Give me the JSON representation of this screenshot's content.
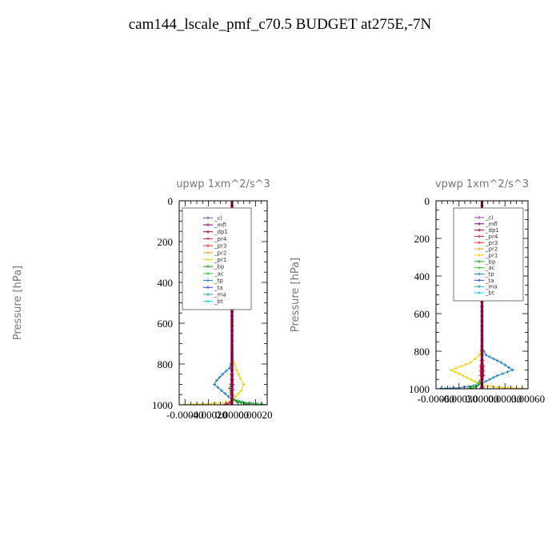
{
  "main_title": "cam144_lscale_pmf_c70.5  BUDGET at275E,-7N",
  "legend_entries": [
    "_cl",
    "_mfl",
    "_dp1",
    "_pr4",
    "_pr3",
    "_pr2",
    "_pr1",
    "_bp",
    "_ac",
    "_tp",
    "_ta",
    "_ma",
    "_bt"
  ],
  "series_colors": {
    "_cl": "#8050a0",
    "_mfl": "#800070",
    "_dp1": "#a00030",
    "_pr4": "#cc2050",
    "_pr3": "#ee3030",
    "_pr2": "#ff9a30",
    "_pr1": "#f0d000",
    "_bp": "#20a020",
    "_ac": "#30c030",
    "_tp": "#2080c0",
    "_ta": "#3050e0",
    "_ma": "#20a0b0",
    "_bt": "#00d0f0"
  },
  "chart_data": [
    {
      "type": "line",
      "title": "upwp   1xm^2/s^3",
      "ylabel": "Pressure [hPa]",
      "xlabel": "",
      "xlim": [
        -0.00045,
        0.0003
      ],
      "ylim": [
        1000,
        0
      ],
      "y_inverted": true,
      "xticks": [
        -0.0004,
        -0.0002,
        0,
        0.0002
      ],
      "xtick_labels": [
        "-0.00040",
        "-0.00020",
        "0.00000",
        "0.00020"
      ],
      "yticks": [
        0,
        200,
        400,
        600,
        800,
        1000
      ],
      "ytick_labels": [
        "0",
        "200",
        "400",
        "600",
        "800",
        "1000"
      ],
      "legend": "top-right",
      "series": [
        {
          "name": "_pr1",
          "points": [
            [
              0,
              0
            ],
            [
              0,
              100
            ],
            [
              1.5e-05,
              140
            ],
            [
              4e-05,
              180
            ],
            [
              6e-05,
              210
            ],
            [
              3e-05,
              250
            ],
            [
              1e-05,
              290
            ],
            [
              0,
              330
            ],
            [
              0,
              500
            ],
            [
              0,
              760
            ],
            [
              2e-05,
              800
            ],
            [
              4e-05,
              830
            ],
            [
              7e-05,
              870
            ],
            [
              0.0001,
              900
            ],
            [
              8e-05,
              930
            ],
            [
              3e-05,
              960
            ],
            [
              0,
              980
            ],
            [
              -0.0001,
              992
            ],
            [
              -0.00025,
              996
            ],
            [
              -0.00045,
              1000
            ]
          ]
        },
        {
          "name": "_tp",
          "points": [
            [
              0,
              0
            ],
            [
              0,
              130
            ],
            [
              -3e-05,
              170
            ],
            [
              -6e-05,
              200
            ],
            [
              -3e-05,
              230
            ],
            [
              -1e-05,
              270
            ],
            [
              0,
              330
            ],
            [
              0,
              780
            ],
            [
              -2e-05,
              820
            ],
            [
              -8e-05,
              850
            ],
            [
              -0.00013,
              880
            ],
            [
              -0.00015,
              900
            ],
            [
              -9e-05,
              930
            ],
            [
              -3e-05,
              960
            ],
            [
              0,
              975
            ],
            [
              0.0001,
              990
            ],
            [
              0.0003,
              1000
            ]
          ]
        },
        {
          "name": "_ac",
          "points": [
            [
              0,
              0
            ],
            [
              0,
              900
            ],
            [
              -1e-05,
              940
            ],
            [
              0,
              960
            ],
            [
              2e-05,
              975
            ],
            [
              0.00012,
              990
            ],
            [
              0.0003,
              1000
            ]
          ]
        },
        {
          "name": "_bp",
          "points": [
            [
              0,
              0
            ],
            [
              0,
              880
            ],
            [
              -2e-05,
              920
            ],
            [
              -1e-05,
              950
            ],
            [
              0,
              970
            ],
            [
              4e-05,
              985
            ],
            [
              0.00015,
              1000
            ]
          ]
        },
        {
          "name": "_pr3",
          "points": [
            [
              0,
              0
            ],
            [
              0,
              800
            ],
            [
              6e-06,
              850
            ],
            [
              1e-05,
              900
            ],
            [
              5e-06,
              950
            ],
            [
              -1e-05,
              990
            ],
            [
              -5e-05,
              1000
            ]
          ]
        },
        {
          "name": "_pr4",
          "points": [
            [
              0,
              0
            ],
            [
              0,
              800
            ],
            [
              -6e-06,
              850
            ],
            [
              -5e-06,
              920
            ],
            [
              5e-06,
              960
            ],
            [
              -2e-05,
              990
            ],
            [
              -8e-05,
              1000
            ]
          ]
        },
        {
          "name": "_pr2",
          "points": [
            [
              0,
              0
            ],
            [
              0,
              1000
            ]
          ]
        },
        {
          "name": "_ta",
          "points": [
            [
              0,
              0
            ],
            [
              0,
              1000
            ]
          ]
        },
        {
          "name": "_ma",
          "points": [
            [
              0,
              0
            ],
            [
              0,
              1000
            ]
          ]
        },
        {
          "name": "_mfl",
          "points": [
            [
              0,
              0
            ],
            [
              0,
              1000
            ]
          ]
        },
        {
          "name": "_dp1",
          "points": [
            [
              0,
              0
            ],
            [
              0,
              1000
            ]
          ]
        },
        {
          "name": "_cl",
          "points": [
            [
              0,
              0
            ],
            [
              0,
              1000
            ]
          ]
        }
      ]
    },
    {
      "type": "line",
      "title": "vpwp   1xm^2/s^3",
      "ylabel": "Pressure [hPa]",
      "xlabel": "",
      "xlim": [
        -0.0006,
        0.0006
      ],
      "ylim": [
        1000,
        0
      ],
      "y_inverted": true,
      "xticks": [
        -0.0006,
        -0.0003,
        0,
        0.0003,
        0.0006
      ],
      "xtick_labels": [
        "-0.00060",
        "-0.00030",
        "0.00000",
        "0.00030",
        "0.00060"
      ],
      "yticks": [
        0,
        200,
        400,
        600,
        800,
        1000
      ],
      "ytick_labels": [
        "0",
        "200",
        "400",
        "600",
        "800",
        "1000"
      ],
      "legend": "top-right",
      "series": [
        {
          "name": "_pr1",
          "points": [
            [
              0,
              0
            ],
            [
              0,
              100
            ],
            [
              3e-05,
              150
            ],
            [
              5e-05,
              190
            ],
            [
              3e-05,
              230
            ],
            [
              0,
              300
            ],
            [
              0,
              760
            ],
            [
              -3e-05,
              820
            ],
            [
              -0.00015,
              860
            ],
            [
              -0.0004,
              900
            ],
            [
              -0.00025,
              930
            ],
            [
              -0.0001,
              960
            ],
            [
              0,
              980
            ],
            [
              0.0002,
              992
            ],
            [
              0.0006,
              1000
            ]
          ]
        },
        {
          "name": "_tp",
          "points": [
            [
              0,
              0
            ],
            [
              0,
              120
            ],
            [
              -4e-05,
              150
            ],
            [
              -5e-05,
              180
            ],
            [
              -2e-05,
              220
            ],
            [
              0,
              280
            ],
            [
              0,
              780
            ],
            [
              5e-05,
              820
            ],
            [
              0.00025,
              860
            ],
            [
              0.0004,
              900
            ],
            [
              0.0002,
              930
            ],
            [
              5e-05,
              960
            ],
            [
              -5e-05,
              980
            ],
            [
              -0.0003,
              995
            ],
            [
              -0.0006,
              1000
            ]
          ]
        },
        {
          "name": "_ac",
          "points": [
            [
              0,
              0
            ],
            [
              0,
              930
            ],
            [
              -3e-05,
              960
            ],
            [
              -0.0001,
              985
            ],
            [
              -0.0002,
              1000
            ]
          ]
        },
        {
          "name": "_bp",
          "points": [
            [
              0,
              0
            ],
            [
              0,
              940
            ],
            [
              -2e-05,
              970
            ],
            [
              -8e-05,
              990
            ],
            [
              -0.00015,
              1000
            ]
          ]
        },
        {
          "name": "_pr3",
          "points": [
            [
              0,
              0
            ],
            [
              0,
              820
            ],
            [
              -2e-05,
              880
            ],
            [
              -2e-05,
              930
            ],
            [
              0,
              970
            ],
            [
              3e-05,
              1000
            ]
          ]
        },
        {
          "name": "_pr4",
          "points": [
            [
              0,
              0
            ],
            [
              0,
              820
            ],
            [
              2e-05,
              880
            ],
            [
              2e-05,
              930
            ],
            [
              0,
              970
            ],
            [
              -3e-05,
              1000
            ]
          ]
        },
        {
          "name": "_pr2",
          "points": [
            [
              0,
              0
            ],
            [
              0,
              1000
            ]
          ]
        },
        {
          "name": "_ta",
          "points": [
            [
              0,
              0
            ],
            [
              0,
              1000
            ]
          ]
        },
        {
          "name": "_ma",
          "points": [
            [
              0,
              0
            ],
            [
              0,
              1000
            ]
          ]
        },
        {
          "name": "_mfl",
          "points": [
            [
              0,
              0
            ],
            [
              0,
              1000
            ]
          ]
        },
        {
          "name": "_dp1",
          "points": [
            [
              0,
              0
            ],
            [
              0,
              1000
            ]
          ]
        },
        {
          "name": "_cl",
          "points": [
            [
              0,
              0
            ],
            [
              0,
              1000
            ]
          ]
        }
      ]
    }
  ]
}
